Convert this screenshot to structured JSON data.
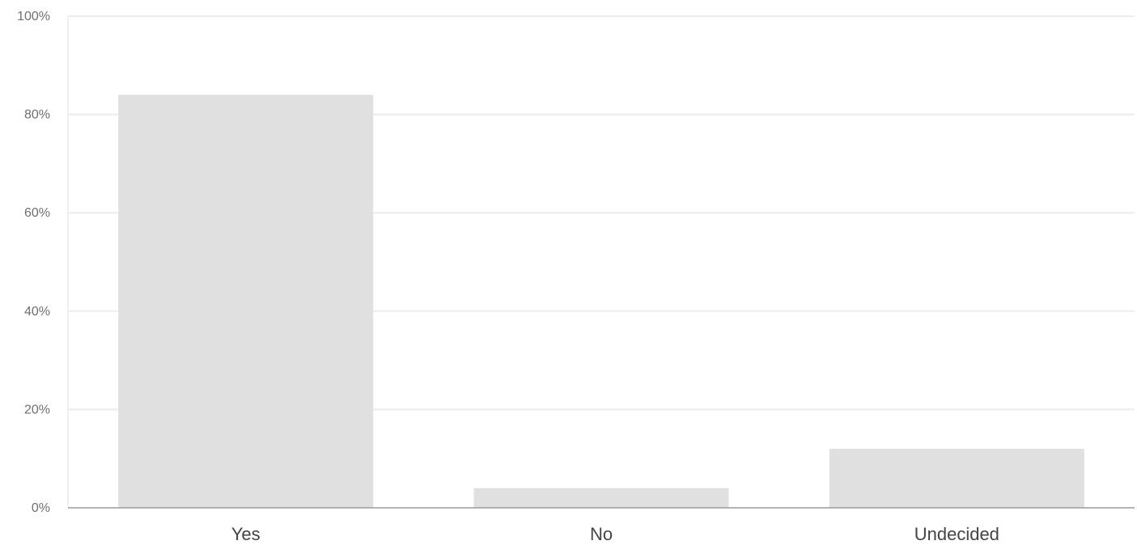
{
  "chart_data": {
    "type": "bar",
    "categories": [
      "Yes",
      "No",
      "Undecided"
    ],
    "values": [
      84,
      4,
      12
    ],
    "value_unit": "%",
    "ylim": [
      0,
      100
    ],
    "y_ticks": [
      0,
      20,
      40,
      60,
      80,
      100
    ],
    "y_tick_labels": [
      "0%",
      "20%",
      "40%",
      "60%",
      "80%",
      "100%"
    ],
    "title": "",
    "xlabel": "",
    "ylabel": "",
    "grid": true,
    "legend": "none",
    "colors": {
      "bar": "#e0e0e0",
      "gridline": "#ececec",
      "axis": "#9a9a9a"
    }
  }
}
